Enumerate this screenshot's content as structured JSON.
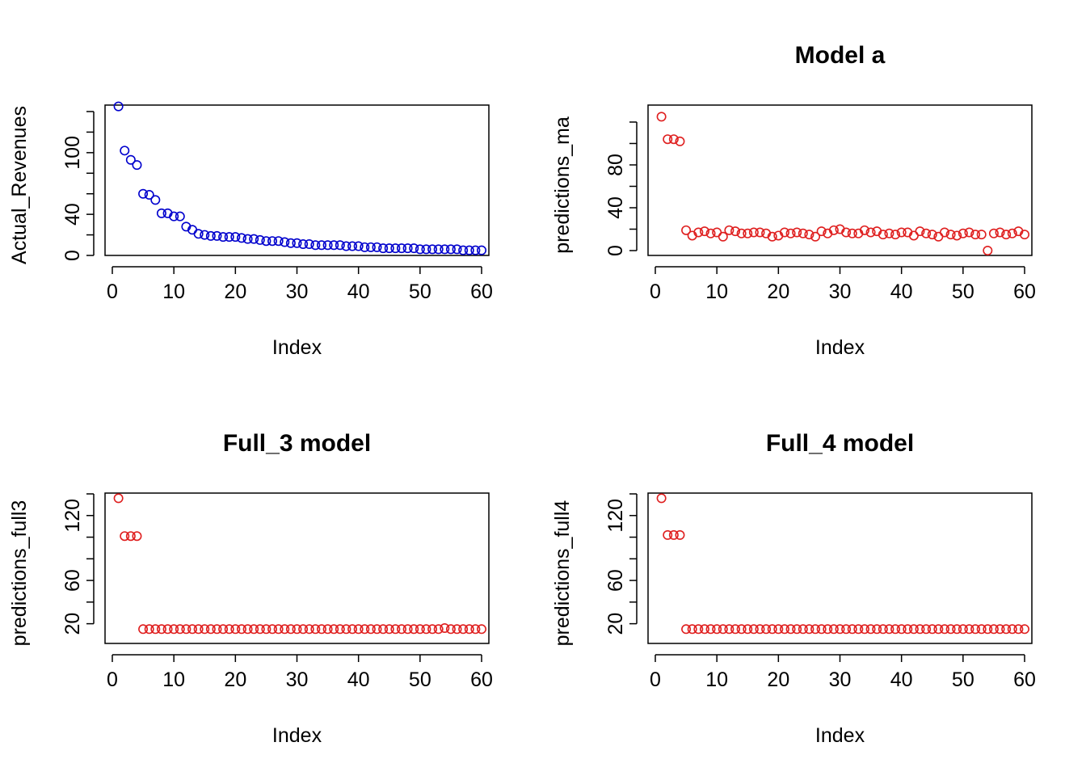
{
  "colors": {
    "blue": "#0000CD",
    "red": "#DF1F1F",
    "axis": "#000000",
    "background": "#FFFFFF"
  },
  "chart_data": [
    {
      "type": "scatter",
      "title": "",
      "xlabel": "Index",
      "ylabel": "Actual_Revenues",
      "xlim": [
        0,
        60
      ],
      "ylim": [
        0,
        140
      ],
      "xticks": [
        0,
        10,
        20,
        30,
        40,
        50,
        60
      ],
      "yticks": [
        0,
        40,
        100
      ],
      "yminor": [
        20,
        60,
        80,
        120,
        140
      ],
      "color": "blue",
      "x": [
        1,
        2,
        3,
        4,
        5,
        6,
        7,
        8,
        9,
        10,
        11,
        12,
        13,
        14,
        15,
        16,
        17,
        18,
        19,
        20,
        21,
        22,
        23,
        24,
        25,
        26,
        27,
        28,
        29,
        30,
        31,
        32,
        33,
        34,
        35,
        36,
        37,
        38,
        39,
        40,
        41,
        42,
        43,
        44,
        45,
        46,
        47,
        48,
        49,
        50,
        51,
        52,
        53,
        54,
        55,
        56,
        57,
        58,
        59,
        60
      ],
      "y": [
        145,
        102,
        93,
        88,
        60,
        59,
        54,
        41,
        41,
        38,
        38,
        28,
        25,
        21,
        20,
        19,
        19,
        18,
        18,
        18,
        17,
        16,
        16,
        15,
        14,
        14,
        14,
        13,
        12,
        12,
        11,
        11,
        10,
        10,
        10,
        10,
        10,
        9,
        9,
        9,
        8,
        8,
        8,
        7,
        7,
        7,
        7,
        7,
        7,
        6,
        6,
        6,
        6,
        6,
        6,
        6,
        5,
        5,
        5,
        5
      ]
    },
    {
      "type": "scatter",
      "title": "Model a",
      "xlabel": "Index",
      "ylabel": "predictions_ma",
      "xlim": [
        0,
        60
      ],
      "ylim": [
        0,
        120
      ],
      "xticks": [
        0,
        10,
        20,
        30,
        40,
        50,
        60
      ],
      "yticks": [
        0,
        40,
        80
      ],
      "yminor": [
        20,
        60,
        100,
        120
      ],
      "color": "red",
      "x": [
        1,
        2,
        3,
        4,
        5,
        6,
        7,
        8,
        9,
        10,
        11,
        12,
        13,
        14,
        15,
        16,
        17,
        18,
        19,
        20,
        21,
        22,
        23,
        24,
        25,
        26,
        27,
        28,
        29,
        30,
        31,
        32,
        33,
        34,
        35,
        36,
        37,
        38,
        39,
        40,
        41,
        42,
        43,
        44,
        45,
        46,
        47,
        48,
        49,
        50,
        51,
        52,
        53,
        54,
        55,
        56,
        57,
        58,
        59,
        60
      ],
      "y": [
        125,
        104,
        104,
        102,
        19,
        14,
        17,
        18,
        16,
        17,
        13,
        19,
        18,
        16,
        16,
        17,
        17,
        16,
        13,
        14,
        17,
        16,
        17,
        16,
        15,
        13,
        18,
        16,
        19,
        20,
        17,
        16,
        16,
        19,
        17,
        18,
        15,
        16,
        15,
        17,
        17,
        14,
        18,
        16,
        15,
        13,
        17,
        15,
        14,
        16,
        17,
        15,
        15,
        0,
        16,
        17,
        15,
        16,
        18,
        15
      ]
    },
    {
      "type": "scatter",
      "title": "Full_3 model",
      "xlabel": "Index",
      "ylabel": "predictions_full3",
      "xlim": [
        0,
        60
      ],
      "ylim": [
        10,
        140
      ],
      "xticks": [
        0,
        10,
        20,
        30,
        40,
        50,
        60
      ],
      "yticks": [
        20,
        60,
        120
      ],
      "yminor": [
        40,
        80,
        100,
        140
      ],
      "color": "red",
      "x": [
        1,
        2,
        3,
        4,
        5,
        6,
        7,
        8,
        9,
        10,
        11,
        12,
        13,
        14,
        15,
        16,
        17,
        18,
        19,
        20,
        21,
        22,
        23,
        24,
        25,
        26,
        27,
        28,
        29,
        30,
        31,
        32,
        33,
        34,
        35,
        36,
        37,
        38,
        39,
        40,
        41,
        42,
        43,
        44,
        45,
        46,
        47,
        48,
        49,
        50,
        51,
        52,
        53,
        54,
        55,
        56,
        57,
        58,
        59,
        60
      ],
      "y": [
        136,
        101,
        101,
        101,
        15,
        15,
        15,
        15,
        15,
        15,
        15,
        15,
        15,
        15,
        15,
        15,
        15,
        15,
        15,
        15,
        15,
        15,
        15,
        15,
        15,
        15,
        15,
        15,
        15,
        15,
        15,
        15,
        15,
        15,
        15,
        15,
        15,
        15,
        15,
        15,
        15,
        15,
        15,
        15,
        15,
        15,
        15,
        15,
        15,
        15,
        15,
        15,
        15,
        16,
        15,
        15,
        15,
        15,
        15,
        15
      ]
    },
    {
      "type": "scatter",
      "title": "Full_4 model",
      "xlabel": "Index",
      "ylabel": "predictions_full4",
      "xlim": [
        0,
        60
      ],
      "ylim": [
        10,
        140
      ],
      "xticks": [
        0,
        10,
        20,
        30,
        40,
        50,
        60
      ],
      "yticks": [
        20,
        60,
        120
      ],
      "yminor": [
        40,
        80,
        100,
        140
      ],
      "color": "red",
      "x": [
        1,
        2,
        3,
        4,
        5,
        6,
        7,
        8,
        9,
        10,
        11,
        12,
        13,
        14,
        15,
        16,
        17,
        18,
        19,
        20,
        21,
        22,
        23,
        24,
        25,
        26,
        27,
        28,
        29,
        30,
        31,
        32,
        33,
        34,
        35,
        36,
        37,
        38,
        39,
        40,
        41,
        42,
        43,
        44,
        45,
        46,
        47,
        48,
        49,
        50,
        51,
        52,
        53,
        54,
        55,
        56,
        57,
        58,
        59,
        60
      ],
      "y": [
        136,
        102,
        102,
        102,
        15,
        15,
        15,
        15,
        15,
        15,
        15,
        15,
        15,
        15,
        15,
        15,
        15,
        15,
        15,
        15,
        15,
        15,
        15,
        15,
        15,
        15,
        15,
        15,
        15,
        15,
        15,
        15,
        15,
        15,
        15,
        15,
        15,
        15,
        15,
        15,
        15,
        15,
        15,
        15,
        15,
        15,
        15,
        15,
        15,
        15,
        15,
        15,
        15,
        15,
        15,
        15,
        15,
        15,
        15,
        15
      ]
    }
  ]
}
